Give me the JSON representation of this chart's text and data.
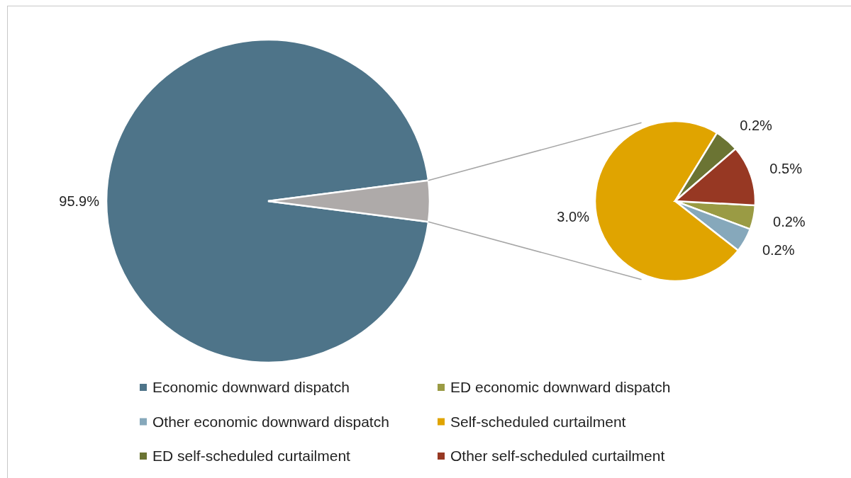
{
  "chart_data": [
    {
      "type": "pie",
      "categories": [
        "Economic downward dispatch",
        null
      ],
      "values": [
        95.9,
        4.1
      ],
      "value_labels": [
        "95.9%",
        null
      ],
      "colors": [
        "#4e7489",
        "#aeaaa9"
      ],
      "legend": "bottom"
    },
    {
      "type": "pie",
      "categories": [
        "ED economic downward dispatch",
        "Other economic downward dispatch",
        "Self-scheduled curtailment",
        "ED self-scheduled curtailment",
        "Other self-scheduled curtailment"
      ],
      "values": [
        0.2,
        0.2,
        3.0,
        0.2,
        0.5
      ],
      "value_labels": [
        "0.2%",
        "0.2%",
        "3.0%",
        "0.2%",
        "0.5%"
      ],
      "colors": [
        "#9a9b44",
        "#86a8bb",
        "#e0a400",
        "#6b7433",
        "#973823"
      ],
      "legend": "bottom"
    }
  ]
}
